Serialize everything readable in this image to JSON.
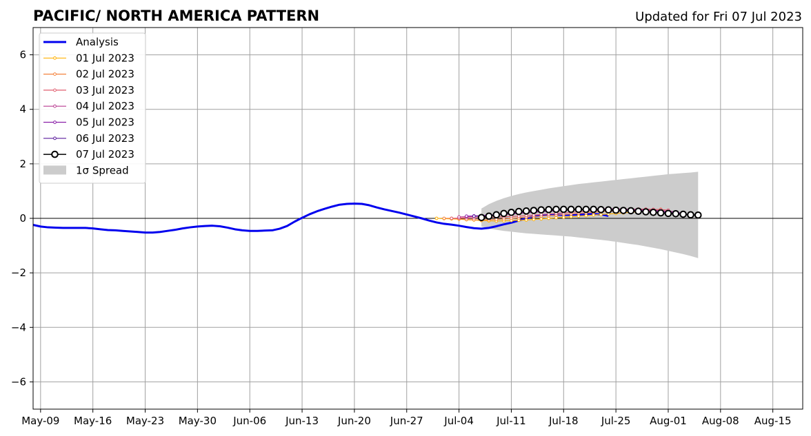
{
  "chart_data": {
    "type": "line",
    "title": "PACIFIC/ NORTH AMERICA PATTERN",
    "subtitle": "Updated for Fri 07 Jul 2023",
    "xlabel": "",
    "ylabel": "",
    "xlim": [
      "2023-05-08",
      "2023-08-19"
    ],
    "ylim": [
      -7,
      7
    ],
    "x_ticks": [
      "May-09",
      "May-16",
      "May-23",
      "May-30",
      "Jun-06",
      "Jun-13",
      "Jun-20",
      "Jun-27",
      "Jul-04",
      "Jul-11",
      "Jul-18",
      "Jul-25",
      "Aug-01",
      "Aug-08",
      "Aug-15"
    ],
    "y_ticks": [
      6,
      4,
      2,
      0,
      -2,
      -4,
      -6
    ],
    "grid": true,
    "legend_position": "top-left",
    "legend_labels": [
      "Analysis",
      "01 Jul 2023",
      "02 Jul 2023",
      "03 Jul 2023",
      "04 Jul 2023",
      "05 Jul 2023",
      "06 Jul 2023",
      "07 Jul 2023",
      "1σ Spread"
    ],
    "analysis": {
      "name": "Analysis",
      "color": "#0000ee",
      "start": "2023-05-08",
      "values": [
        -0.24,
        -0.3,
        -0.33,
        -0.34,
        -0.35,
        -0.35,
        -0.35,
        -0.35,
        -0.37,
        -0.4,
        -0.43,
        -0.44,
        -0.46,
        -0.48,
        -0.5,
        -0.52,
        -0.52,
        -0.5,
        -0.46,
        -0.42,
        -0.37,
        -0.33,
        -0.3,
        -0.28,
        -0.27,
        -0.29,
        -0.34,
        -0.4,
        -0.44,
        -0.46,
        -0.46,
        -0.45,
        -0.44,
        -0.38,
        -0.28,
        -0.12,
        0.02,
        0.15,
        0.26,
        0.35,
        0.43,
        0.5,
        0.53,
        0.54,
        0.53,
        0.48,
        0.4,
        0.33,
        0.27,
        0.21,
        0.14,
        0.07,
        0.0,
        -0.08,
        -0.15,
        -0.2,
        -0.23,
        -0.27,
        -0.32,
        -0.36,
        -0.38,
        -0.35,
        -0.29,
        -0.22,
        -0.16,
        -0.08,
        0.0,
        0.07,
        0.11,
        0.13,
        0.13,
        0.12,
        0.13,
        0.14,
        0.15,
        0.16,
        0.14,
        0.09
      ]
    },
    "forecasts": [
      {
        "name": "01 Jul 2023",
        "color": "#ffb000",
        "start": "2023-07-01",
        "values": [
          0.0,
          -0.01,
          -0.02,
          -0.03,
          -0.05,
          -0.06,
          -0.08,
          -0.09,
          -0.1,
          -0.09,
          -0.08,
          -0.07,
          -0.06,
          -0.04,
          -0.02,
          0.0,
          0.02,
          0.04,
          0.06,
          0.08,
          0.1,
          0.12,
          0.14,
          0.16,
          0.18,
          0.2,
          0.22,
          0.24,
          0.26,
          0.28
        ]
      },
      {
        "name": "02 Jul 2023",
        "color": "#f4823c",
        "start": "2023-07-02",
        "values": [
          0.0,
          0.0,
          -0.02,
          -0.04,
          -0.05,
          -0.06,
          -0.05,
          -0.04,
          -0.02,
          0.0,
          0.02,
          0.04,
          0.06,
          0.08,
          0.1,
          0.12,
          0.14,
          0.16,
          0.18,
          0.2,
          0.22,
          0.24,
          0.26,
          0.27,
          0.28,
          0.29,
          0.3,
          0.31,
          0.32,
          0.33
        ]
      },
      {
        "name": "03 Jul 2023",
        "color": "#e05c6e",
        "start": "2023-07-03",
        "values": [
          0.0,
          0.01,
          0.02,
          0.02,
          0.03,
          0.04,
          0.05,
          0.06,
          0.07,
          0.08,
          0.1,
          0.12,
          0.14,
          0.16,
          0.18,
          0.2,
          0.22,
          0.24,
          0.26,
          0.28,
          0.29,
          0.3,
          0.31,
          0.32,
          0.33,
          0.34,
          0.34,
          0.33,
          0.32,
          0.3
        ]
      },
      {
        "name": "04 Jul 2023",
        "color": "#b83a8f",
        "start": "2023-07-04",
        "values": [
          0.05,
          0.06,
          0.07,
          0.08,
          0.1,
          0.12,
          0.14,
          0.16,
          0.18,
          0.2,
          0.22,
          0.24,
          0.26,
          0.28,
          0.3,
          0.31,
          0.32,
          0.33,
          0.34,
          0.35,
          0.35,
          0.35,
          0.34,
          0.33,
          0.32,
          0.31,
          0.3,
          0.28,
          0.26,
          0.24
        ]
      },
      {
        "name": "05 Jul 2023",
        "color": "#8a1fa8",
        "start": "2023-07-05",
        "values": [
          0.08,
          0.09,
          0.1,
          0.12,
          0.14,
          0.16,
          0.18,
          0.2,
          0.22,
          0.24,
          0.26,
          0.28,
          0.3,
          0.31,
          0.32,
          0.33,
          0.34,
          0.34,
          0.34,
          0.34,
          0.33,
          0.32,
          0.31,
          0.3,
          0.29,
          0.28,
          0.26,
          0.24,
          0.22,
          0.2
        ]
      },
      {
        "name": "06 Jul 2023",
        "color": "#5a1a9c",
        "start": "2023-07-06",
        "values": [
          0.08,
          0.08,
          0.1,
          0.12,
          0.15,
          0.18,
          0.2,
          0.22,
          0.24,
          0.26,
          0.28,
          0.29,
          0.3,
          0.31,
          0.31,
          0.31,
          0.31,
          0.3,
          0.29,
          0.28,
          0.27,
          0.26,
          0.25,
          0.24,
          0.23,
          0.22,
          0.2,
          0.18,
          0.16,
          0.14
        ]
      },
      {
        "name": "07 Jul 2023",
        "color": "#000000",
        "start": "2023-07-07",
        "values": [
          0.03,
          0.08,
          0.13,
          0.18,
          0.22,
          0.25,
          0.27,
          0.29,
          0.31,
          0.32,
          0.33,
          0.33,
          0.33,
          0.33,
          0.33,
          0.33,
          0.32,
          0.31,
          0.3,
          0.29,
          0.28,
          0.26,
          0.24,
          0.22,
          0.2,
          0.18,
          0.17,
          0.15,
          0.13,
          0.12
        ]
      }
    ],
    "spread": {
      "name": "1σ Spread",
      "color": "#cccccc",
      "start": "2023-07-07",
      "upper": [
        0.36,
        0.52,
        0.64,
        0.74,
        0.82,
        0.89,
        0.95,
        1.0,
        1.05,
        1.1,
        1.14,
        1.18,
        1.22,
        1.26,
        1.29,
        1.32,
        1.35,
        1.38,
        1.41,
        1.44,
        1.47,
        1.5,
        1.53,
        1.56,
        1.59,
        1.62,
        1.64,
        1.66,
        1.68,
        1.71
      ],
      "lower": [
        -0.3,
        -0.37,
        -0.42,
        -0.46,
        -0.49,
        -0.52,
        -0.55,
        -0.57,
        -0.59,
        -0.61,
        -0.63,
        -0.65,
        -0.67,
        -0.7,
        -0.73,
        -0.76,
        -0.79,
        -0.82,
        -0.86,
        -0.9,
        -0.94,
        -0.98,
        -1.03,
        -1.08,
        -1.13,
        -1.19,
        -1.25,
        -1.31,
        -1.38,
        -1.46
      ]
    }
  }
}
